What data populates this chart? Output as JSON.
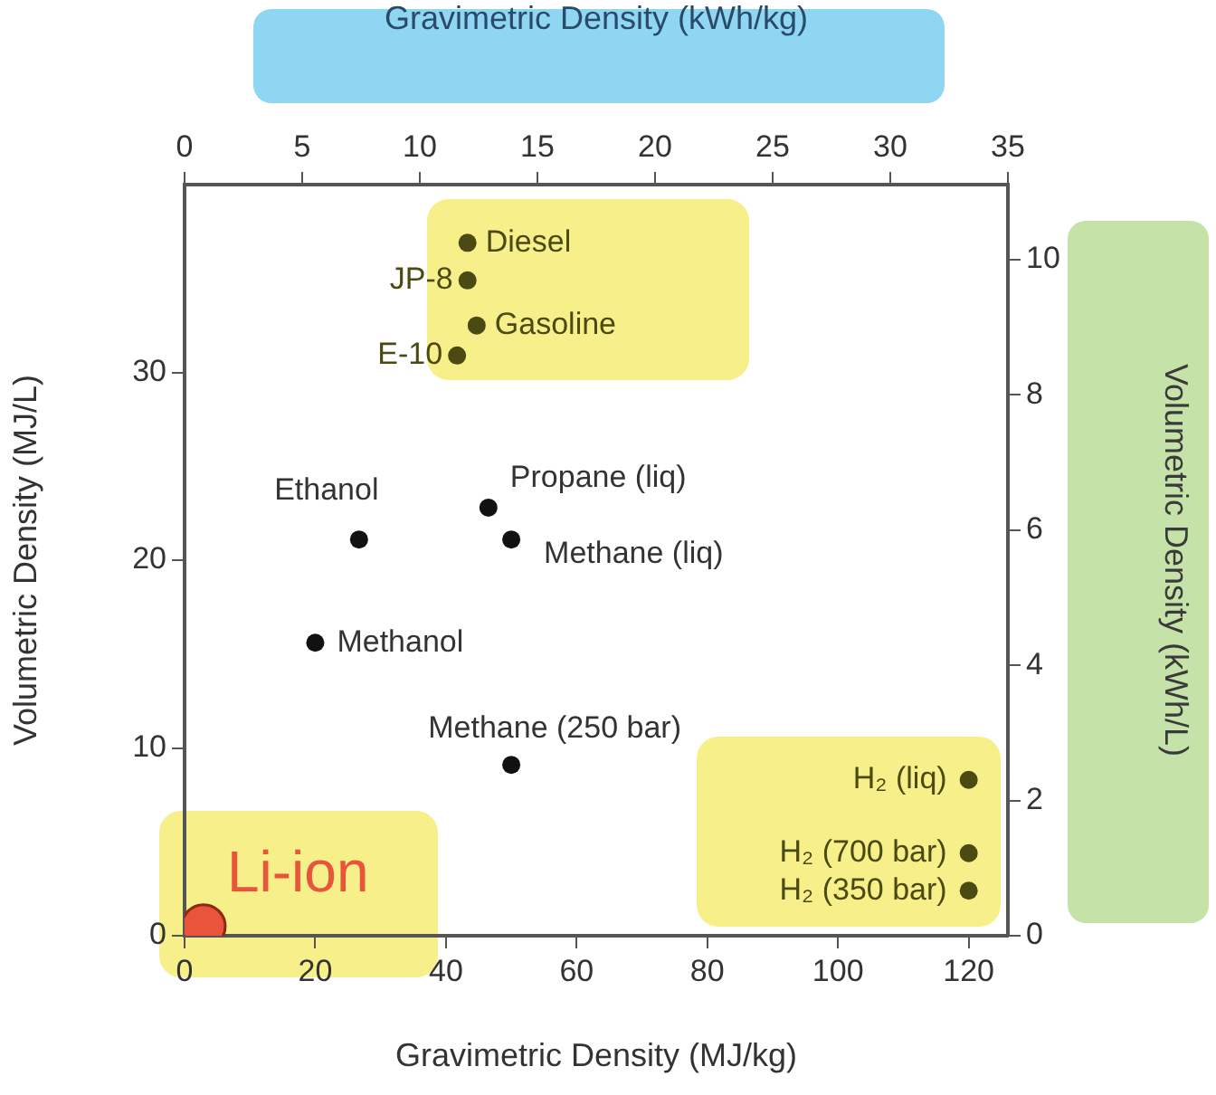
{
  "chart_data": {
    "type": "scatter",
    "xlabel": "Gravimetric Density (MJ/kg)",
    "ylabel": "Volumetric Density (MJ/L)",
    "x2label": "Gravimetric Density (kWh/kg)",
    "y2label": "Volumetric Density (kWh/L)",
    "xlim": [
      0,
      126
    ],
    "xticks": [
      0,
      20,
      40,
      60,
      80,
      100,
      120
    ],
    "x2lim": [
      0,
      35
    ],
    "x2ticks": [
      0,
      5,
      10,
      15,
      20,
      25,
      30,
      35
    ],
    "ylim": [
      0,
      40
    ],
    "yticks": [
      0,
      10,
      20,
      30
    ],
    "y2lim": [
      0,
      11.11
    ],
    "y2ticks": [
      0,
      2,
      4,
      6,
      8,
      10
    ],
    "grid": false,
    "legend": false,
    "marker": "circle",
    "series": [
      {
        "color": "#111111",
        "x": [
          26.7,
          46.5,
          50,
          20,
          50
        ],
        "values": [
          21.1,
          22.8,
          21.1,
          15.6,
          9.1
        ]
      },
      {
        "color": "#4a4a12",
        "x": [
          43.3,
          43.3,
          44.7,
          41.7,
          120,
          120,
          120
        ],
        "values": [
          36.9,
          34.9,
          32.5,
          30.9,
          8.3,
          4.4,
          2.4
        ]
      },
      {
        "color": "#e8553a",
        "x": [
          2.9
        ],
        "values": [
          0.5
        ]
      }
    ],
    "annotations": [
      {
        "text": "Diesel",
        "x": 43.3,
        "y": 36.9
      },
      {
        "text": "JP-8",
        "x": 43.3,
        "y": 34.9
      },
      {
        "text": "Gasoline",
        "x": 44.7,
        "y": 32.5
      },
      {
        "text": "E-10",
        "x": 41.7,
        "y": 30.9
      },
      {
        "text": "Ethanol",
        "x": 26.7,
        "y": 21.1
      },
      {
        "text": "Propane (liq)",
        "x": 46.5,
        "y": 22.8
      },
      {
        "text": "Methane (liq)",
        "x": 50,
        "y": 21.1
      },
      {
        "text": "Methanol",
        "x": 20,
        "y": 15.6
      },
      {
        "text": "Methane (250 bar)",
        "x": 50,
        "y": 9.1
      },
      {
        "text": "H₂ (liq)",
        "x": 120,
        "y": 8.3
      },
      {
        "text": "H₂ (700 bar)",
        "x": 120,
        "y": 4.4
      },
      {
        "text": "H₂ (350 bar)",
        "x": 120,
        "y": 2.4
      },
      {
        "text": "Li-ion",
        "x": 2.9,
        "y": 0.5
      }
    ]
  }
}
